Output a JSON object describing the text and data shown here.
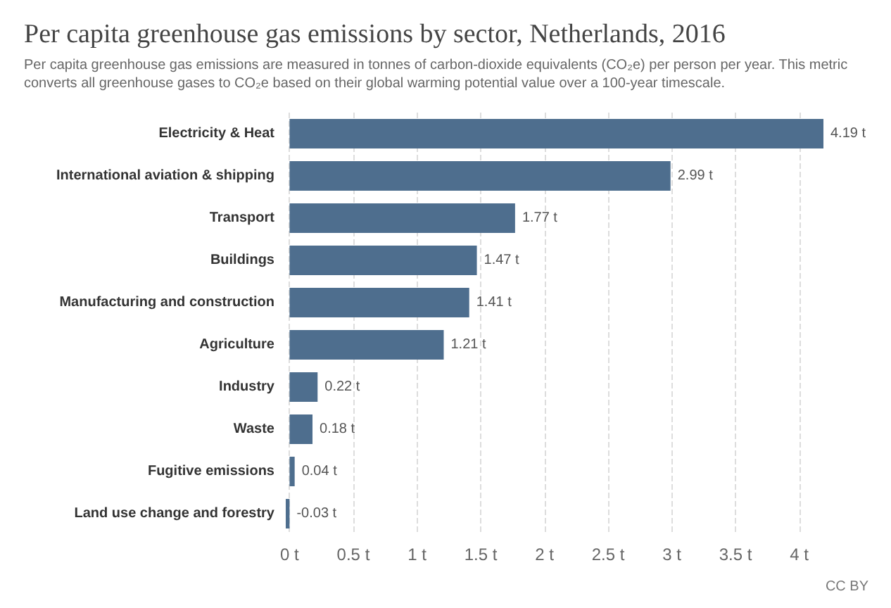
{
  "chart_data": {
    "type": "bar",
    "orientation": "horizontal",
    "title": "Per capita greenhouse gas emissions by sector, Netherlands, 2016",
    "subtitle": "Per capita greenhouse gas emissions are measured in tonnes of carbon-dioxide equivalents (CO₂e) per person per year. This metric converts all greenhouse gases to CO₂e based on their global warming potential value over a 100-year timescale.",
    "categories": [
      "Electricity & Heat",
      "International aviation & shipping",
      "Transport",
      "Buildings",
      "Manufacturing and construction",
      "Agriculture",
      "Industry",
      "Waste",
      "Fugitive emissions",
      "Land use change and forestry"
    ],
    "values": [
      4.19,
      2.99,
      1.77,
      1.47,
      1.41,
      1.21,
      0.22,
      0.18,
      0.04,
      -0.03
    ],
    "value_labels": [
      "4.19 t",
      "2.99 t",
      "1.77 t",
      "1.47 t",
      "1.41 t",
      "1.21 t",
      "0.22 t",
      "0.18 t",
      "0.04 t",
      "-0.03 t"
    ],
    "color": "#4e6e8e",
    "xlim": [
      -0.03,
      4.19
    ],
    "xticks": [
      {
        "value": 0,
        "label": "0 t"
      },
      {
        "value": 0.5,
        "label": "0.5 t"
      },
      {
        "value": 1,
        "label": "1 t"
      },
      {
        "value": 1.5,
        "label": "1.5 t"
      },
      {
        "value": 2,
        "label": "2 t"
      },
      {
        "value": 2.5,
        "label": "2.5 t"
      },
      {
        "value": 3,
        "label": "3 t"
      },
      {
        "value": 3.5,
        "label": "3.5 t"
      },
      {
        "value": 4,
        "label": "4 t"
      }
    ],
    "grid": "x",
    "annotations": [
      "CC BY"
    ]
  }
}
